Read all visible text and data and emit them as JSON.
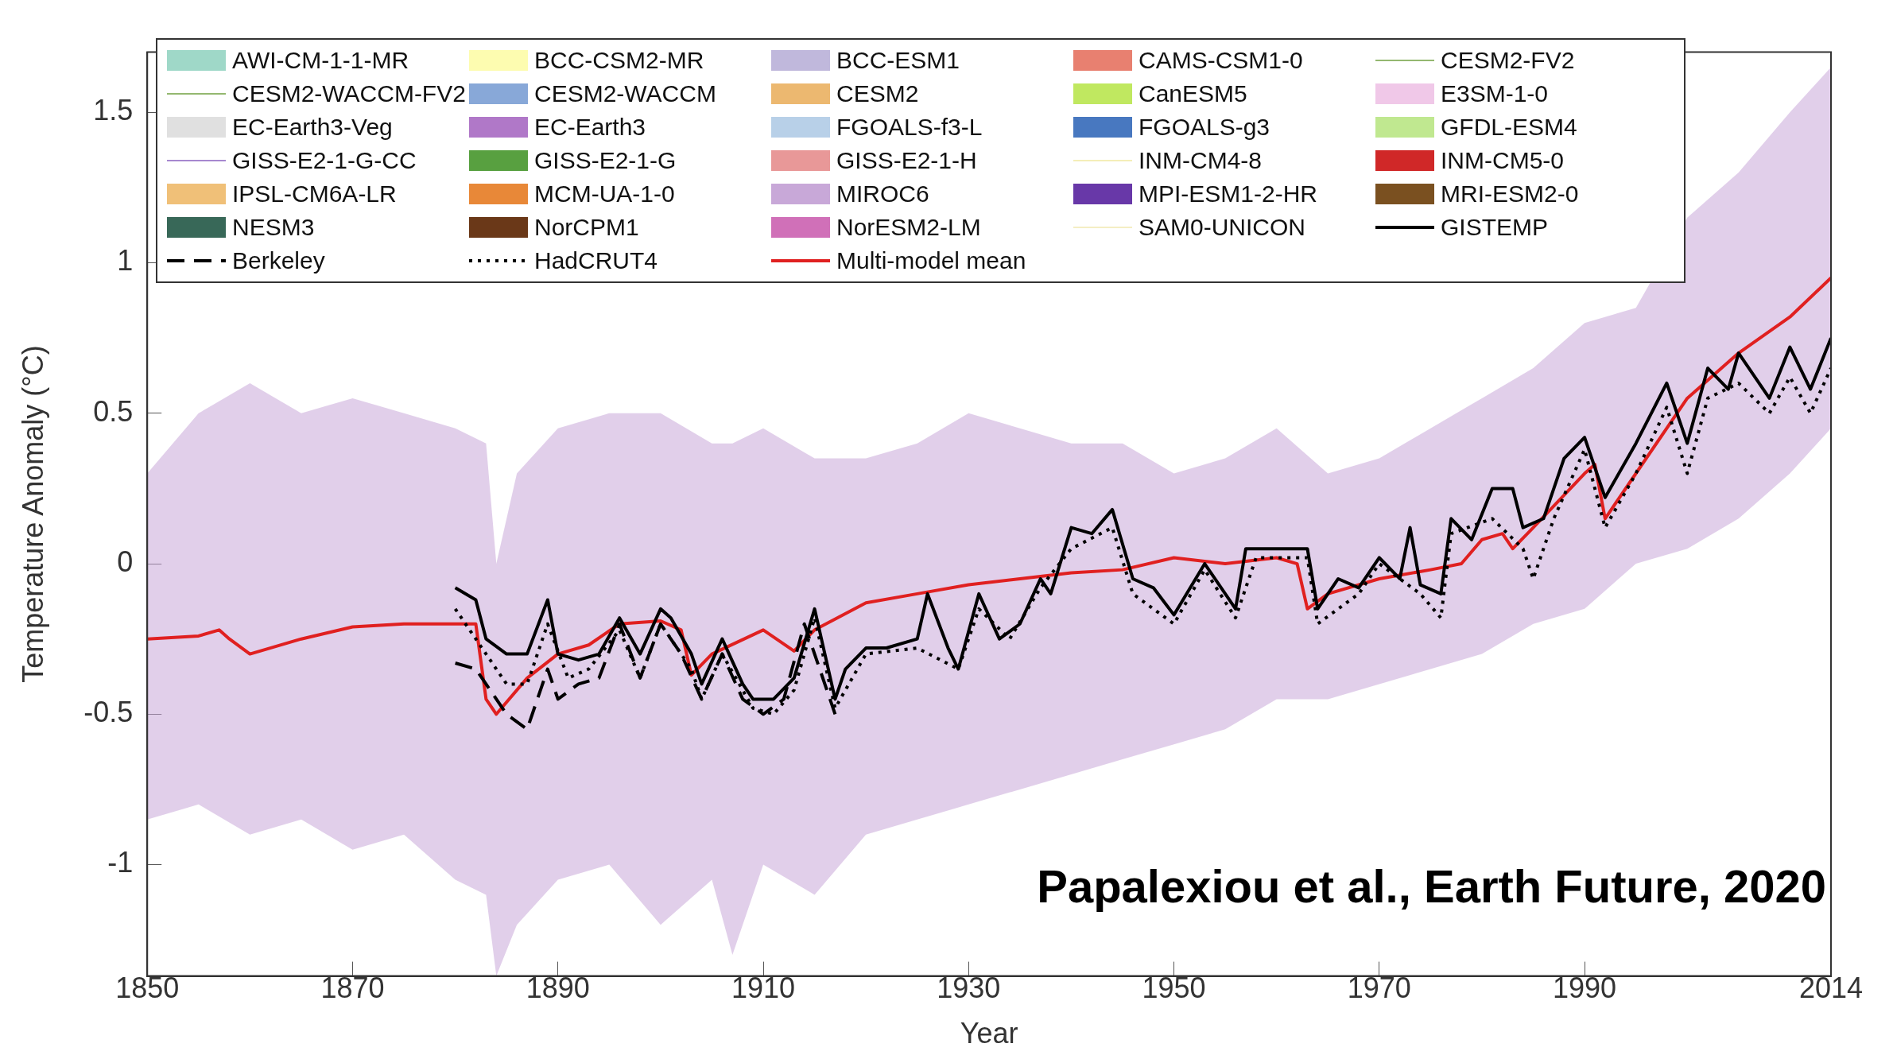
{
  "chart_data": {
    "type": "line",
    "xlabel": "Year",
    "ylabel": "Temperature Anomaly (°C)",
    "xlim": [
      1850,
      2014
    ],
    "xticks": [
      1850,
      1870,
      1890,
      1910,
      1930,
      1950,
      1970,
      1990,
      2014
    ],
    "ylim": [
      -1.37,
      1.7
    ],
    "yticks": [
      -1,
      -0.5,
      0,
      0.5,
      1,
      1.5
    ],
    "legend": "top left",
    "marker": "none",
    "annotations": [
      "Papalexiou et al., Earth Future, 2020"
    ],
    "series": [
      {
        "name": "AWI-CM-1-1-MR",
        "color": "#9fd8c8",
        "type": "area"
      },
      {
        "name": "BCC-CSM2-MR",
        "color": "#fdfcb0",
        "type": "area"
      },
      {
        "name": "BCC-ESM1",
        "color": "#c0b8dc",
        "type": "area"
      },
      {
        "name": "CAMS-CSM1-0",
        "color": "#e88070",
        "type": "area"
      },
      {
        "name": "CESM2-FV2",
        "color": "#70a040",
        "type": "line"
      },
      {
        "name": "CESM2-WACCM-FV2",
        "color": "#70a040",
        "type": "line"
      },
      {
        "name": "CESM2-WACCM",
        "color": "#88a8d8",
        "type": "area"
      },
      {
        "name": "CESM2",
        "color": "#ecb870",
        "type": "area"
      },
      {
        "name": "CanESM5",
        "color": "#c0e860",
        "type": "area"
      },
      {
        "name": "E3SM-1-0",
        "color": "#f0c8e8",
        "type": "area"
      },
      {
        "name": "EC-Earth3-Veg",
        "color": "#e0e0e0",
        "type": "area"
      },
      {
        "name": "EC-Earth3",
        "color": "#b078c8",
        "type": "area"
      },
      {
        "name": "FGOALS-f3-L",
        "color": "#b8d0e8",
        "type": "area"
      },
      {
        "name": "FGOALS-g3",
        "color": "#4878c0",
        "type": "area"
      },
      {
        "name": "GFDL-ESM4",
        "color": "#c0e890",
        "type": "area"
      },
      {
        "name": "GISS-E2-1-G-CC",
        "color": "#8860c0",
        "type": "line"
      },
      {
        "name": "GISS-E2-1-G",
        "color": "#58a040",
        "type": "area"
      },
      {
        "name": "GISS-E2-1-H",
        "color": "#e89898",
        "type": "area"
      },
      {
        "name": "INM-CM4-8",
        "color": "#f0e8a0",
        "type": "line"
      },
      {
        "name": "INM-CM5-0",
        "color": "#d02828",
        "type": "area"
      },
      {
        "name": "IPSL-CM6A-LR",
        "color": "#f0c078",
        "type": "area"
      },
      {
        "name": "MCM-UA-1-0",
        "color": "#e88838",
        "type": "area"
      },
      {
        "name": "MIROC6",
        "color": "#c8a8d8",
        "type": "area"
      },
      {
        "name": "MPI-ESM1-2-HR",
        "color": "#6838a8",
        "type": "area"
      },
      {
        "name": "MRI-ESM2-0",
        "color": "#7a5020",
        "type": "area"
      },
      {
        "name": "NESM3",
        "color": "#386858",
        "type": "area"
      },
      {
        "name": "NorCPM1",
        "color": "#6a3818",
        "type": "area"
      },
      {
        "name": "NorESM2-LM",
        "color": "#d070b8",
        "type": "area"
      },
      {
        "name": "SAM0-UNICON",
        "color": "#f0e8b0",
        "type": "line"
      },
      {
        "name": "GISTEMP",
        "color": "#000000",
        "type": "line",
        "line_style": "solid",
        "x": [
          1880,
          1882,
          1883,
          1885,
          1887,
          1889,
          1890,
          1892,
          1894,
          1896,
          1898,
          1900,
          1901,
          1903,
          1904,
          1906,
          1908,
          1909,
          1911,
          1913,
          1915,
          1917,
          1918,
          1920,
          1922,
          1925,
          1926,
          1928,
          1929,
          1931,
          1933,
          1935,
          1937,
          1938,
          1940,
          1942,
          1944,
          1946,
          1948,
          1950,
          1953,
          1955,
          1956,
          1957,
          1959,
          1961,
          1963,
          1964,
          1966,
          1968,
          1970,
          1972,
          1973,
          1974,
          1976,
          1977,
          1979,
          1981,
          1983,
          1984,
          1986,
          1988,
          1990,
          1992,
          1995,
          1998,
          2000,
          2002,
          2004,
          2005,
          2008,
          2010,
          2012,
          2014
        ],
        "values": [
          -0.08,
          -0.12,
          -0.25,
          -0.3,
          -0.3,
          -0.12,
          -0.3,
          -0.32,
          -0.3,
          -0.18,
          -0.3,
          -0.15,
          -0.18,
          -0.3,
          -0.4,
          -0.25,
          -0.4,
          -0.45,
          -0.45,
          -0.38,
          -0.15,
          -0.45,
          -0.35,
          -0.28,
          -0.28,
          -0.25,
          -0.1,
          -0.28,
          -0.35,
          -0.1,
          -0.25,
          -0.2,
          -0.05,
          -0.1,
          0.12,
          0.1,
          0.18,
          -0.05,
          -0.08,
          -0.17,
          0,
          -0.1,
          -0.15,
          0.05,
          0.05,
          0.05,
          0.05,
          -0.15,
          -0.05,
          -0.08,
          0.02,
          -0.05,
          0.12,
          -0.07,
          -0.1,
          0.15,
          0.08,
          0.25,
          0.25,
          0.12,
          0.15,
          0.35,
          0.42,
          0.22,
          0.4,
          0.6,
          0.4,
          0.65,
          0.58,
          0.7,
          0.55,
          0.72,
          0.58,
          0.75
        ]
      },
      {
        "name": "Berkeley",
        "color": "#000000",
        "type": "line",
        "line_style": "dashed",
        "x": [
          1880,
          1882,
          1883,
          1885,
          1887,
          1889,
          1890,
          1892,
          1894,
          1896,
          1898,
          1900,
          1902,
          1904,
          1906,
          1908,
          1910,
          1912,
          1914,
          1917
        ],
        "values": [
          -0.33,
          -0.35,
          -0.4,
          -0.5,
          -0.55,
          -0.35,
          -0.45,
          -0.4,
          -0.38,
          -0.2,
          -0.38,
          -0.2,
          -0.3,
          -0.45,
          -0.3,
          -0.45,
          -0.5,
          -0.45,
          -0.2,
          -0.5
        ]
      },
      {
        "name": "HadCRUT4",
        "color": "#000000",
        "type": "line",
        "line_style": "dotted",
        "x": [
          1880,
          1883,
          1885,
          1887,
          1889,
          1891,
          1893,
          1896,
          1898,
          1900,
          1903,
          1904,
          1906,
          1909,
          1911,
          1913,
          1915,
          1917,
          1920,
          1925,
          1929,
          1931,
          1934,
          1937,
          1940,
          1944,
          1946,
          1950,
          1953,
          1956,
          1958,
          1963,
          1964,
          1968,
          1970,
          1974,
          1976,
          1977,
          1981,
          1984,
          1985,
          1987,
          1990,
          1992,
          1995,
          1998,
          2000,
          2002,
          2005,
          2008,
          2010,
          2012,
          2014
        ],
        "values": [
          -0.15,
          -0.3,
          -0.4,
          -0.4,
          -0.2,
          -0.38,
          -0.35,
          -0.22,
          -0.38,
          -0.2,
          -0.35,
          -0.45,
          -0.3,
          -0.48,
          -0.5,
          -0.42,
          -0.18,
          -0.48,
          -0.3,
          -0.28,
          -0.35,
          -0.15,
          -0.25,
          -0.08,
          0.05,
          0.12,
          -0.1,
          -0.2,
          -0.02,
          -0.18,
          0.02,
          0.02,
          -0.2,
          -0.1,
          0,
          -0.1,
          -0.18,
          0.1,
          0.15,
          0.05,
          -0.05,
          0.15,
          0.38,
          0.12,
          0.3,
          0.52,
          0.3,
          0.55,
          0.6,
          0.5,
          0.62,
          0.5,
          0.65
        ]
      },
      {
        "name": "Multi-model mean",
        "color": "#e02020",
        "type": "line",
        "line_style": "solid",
        "x": [
          1850,
          1855,
          1857,
          1858,
          1860,
          1865,
          1870,
          1875,
          1880,
          1882,
          1883,
          1884,
          1887,
          1890,
          1893,
          1896,
          1900,
          1902,
          1903,
          1905,
          1910,
          1913,
          1915,
          1920,
          1925,
          1930,
          1935,
          1940,
          1945,
          1950,
          1955,
          1960,
          1962,
          1963,
          1965,
          1970,
          1975,
          1978,
          1980,
          1982,
          1983,
          1985,
          1990,
          1991,
          1992,
          1995,
          2000,
          2005,
          2010,
          2014
        ],
        "values": [
          -0.25,
          -0.24,
          -0.22,
          -0.25,
          -0.3,
          -0.25,
          -0.21,
          -0.2,
          -0.2,
          -0.2,
          -0.45,
          -0.5,
          -0.38,
          -0.3,
          -0.27,
          -0.2,
          -0.19,
          -0.22,
          -0.37,
          -0.3,
          -0.22,
          -0.29,
          -0.22,
          -0.13,
          -0.1,
          -0.07,
          -0.05,
          -0.03,
          -0.02,
          0.02,
          0,
          0.02,
          0,
          -0.15,
          -0.1,
          -0.05,
          -0.02,
          0,
          0.08,
          0.1,
          0.05,
          0.12,
          0.3,
          0.33,
          0.15,
          0.3,
          0.55,
          0.7,
          0.82,
          0.95
        ]
      },
      {
        "type": "area",
        "color": "#c8a8d8",
        "values": [
          null,
          null,
          null,
          null,
          null,
          null,
          null,
          null,
          null,
          null,
          null,
          null,
          null,
          null,
          null,
          null,
          null,
          null,
          null,
          null,
          null,
          null,
          null,
          null,
          null,
          null,
          null,
          null,
          null,
          null,
          null,
          null,
          null,
          null,
          null,
          null,
          null
        ],
        "x": [
          1850,
          1855,
          1860,
          1865,
          1870,
          1875,
          1880,
          1883,
          1884,
          1886,
          1890,
          1895,
          1900,
          1905,
          1907,
          1910,
          1915,
          1920,
          1925,
          1930,
          1935,
          1940,
          1945,
          1950,
          1955,
          1960,
          1965,
          1970,
          1975,
          1980,
          1985,
          1990,
          1995,
          2000,
          2005,
          2010,
          2014
        ],
        "lower": [
          -0.85,
          -0.8,
          -0.9,
          -0.85,
          -0.95,
          -0.9,
          -1.05,
          -1.1,
          -1.37,
          -1.2,
          -1.05,
          -1,
          -1.2,
          -1.05,
          -1.3,
          -1,
          -1.1,
          -0.9,
          -0.85,
          -0.8,
          -0.75,
          -0.7,
          -0.65,
          -0.6,
          -0.55,
          -0.45,
          -0.45,
          -0.4,
          -0.35,
          -0.3,
          -0.2,
          -0.15,
          0,
          0.05,
          0.15,
          0.3,
          0.45
        ],
        "upper": [
          0.3,
          0.5,
          0.6,
          0.5,
          0.55,
          0.5,
          0.45,
          0.4,
          0,
          0.3,
          0.45,
          0.5,
          0.5,
          0.4,
          0.4,
          0.45,
          0.35,
          0.35,
          0.4,
          0.5,
          0.45,
          0.4,
          0.4,
          0.3,
          0.35,
          0.45,
          0.3,
          0.35,
          0.45,
          0.55,
          0.65,
          0.8,
          0.85,
          1.15,
          1.3,
          1.5,
          1.65
        ]
      }
    ]
  }
}
